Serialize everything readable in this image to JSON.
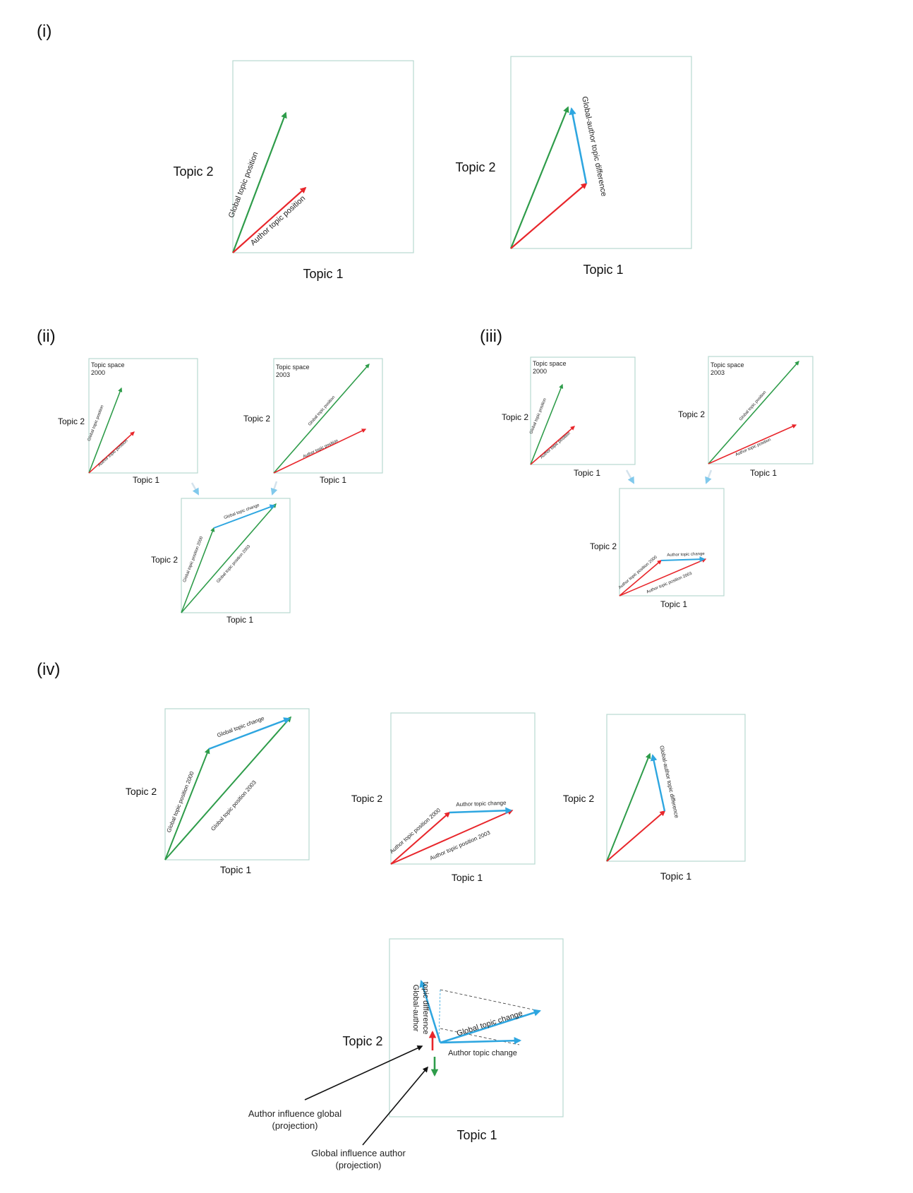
{
  "sections": {
    "i": "(i)",
    "ii": "(ii)",
    "iii": "(iii)",
    "iv": "(iv)"
  },
  "axes": {
    "topic1": "Topic 1",
    "topic2": "Topic 2"
  },
  "panel_titles": {
    "space2000": [
      "Topic space",
      "2000"
    ],
    "space2003": [
      "Topic space",
      "2003"
    ]
  },
  "vector_labels": {
    "global_position": "Global topic position",
    "author_position": "Author topic position",
    "global_author_difference": "Global-author topic difference",
    "global_author_difference_split": [
      "Global-author",
      "topic difference"
    ],
    "global_change": "Global topic change",
    "author_change": "Author topic change",
    "global_position_2000": "Global topic position 2000",
    "global_position_2003": "Global topic position 2003",
    "author_position_2000": "Author topic position 2000",
    "author_position_2003": "Author topic position 2003"
  },
  "callouts": {
    "author_influence": [
      "Author influence global",
      "(projection)"
    ],
    "global_influence": [
      "Global influence author",
      "(projection)"
    ]
  },
  "colors": {
    "global": "#2e9c4a",
    "author": "#e8262b",
    "change": "#2ea6e0",
    "panel_border": "#b8d8d0",
    "callout_arrow": "#111111"
  }
}
